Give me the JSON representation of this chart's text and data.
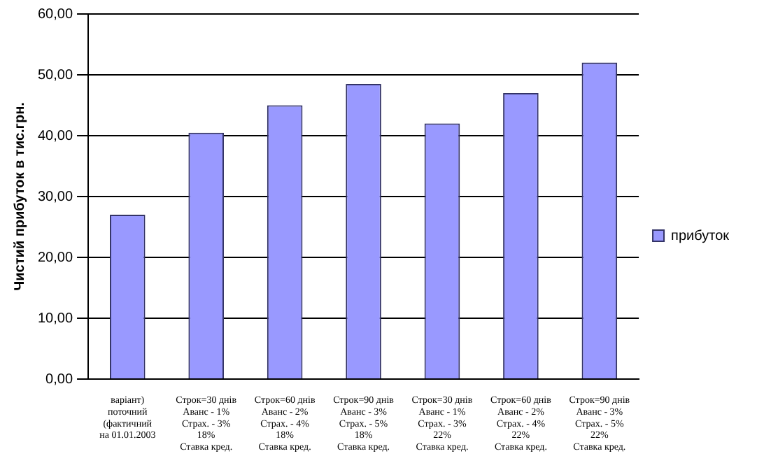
{
  "chart_data": {
    "type": "bar",
    "ylabel": "Чистий прибуток в тис.грн.",
    "categories": [
      "варіант)\nпоточний\n(фактичний\nна 01.01.2003",
      "Строк=30 днів\nАванс - 1%\nСтрах. - 3%\n18%\nСтавка кред.",
      "Строк=60 днів\nАванс - 2%\nСтрах. - 4%\n18%\nСтавка кред.",
      "Строк=90 днів\nАванс - 3%\nСтрах. - 5%\n18%\nСтавка кред.",
      "Строк=30 днів\nАванс - 1%\nСтрах. - 3%\n22%\nСтавка кред.",
      "Строк=60 днів\nАванс - 2%\nСтрах. - 4%\n22%\nСтавка кред.",
      "Строк=90 днів\nАванс - 3%\nСтрах. - 5%\n22%\nСтавка кред."
    ],
    "series": [
      {
        "name": "прибуток",
        "color": "#9999ff",
        "values": [
          27,
          40.5,
          45,
          48.5,
          42,
          47,
          52
        ]
      }
    ],
    "ylim": [
      0,
      60
    ],
    "yticks": [
      {
        "value": 0,
        "label": "0,00"
      },
      {
        "value": 10,
        "label": "10,00"
      },
      {
        "value": 20,
        "label": "20,00"
      },
      {
        "value": 30,
        "label": "30,00"
      },
      {
        "value": 40,
        "label": "40,00"
      },
      {
        "value": 50,
        "label": "50,00"
      },
      {
        "value": 60,
        "label": "60,00"
      }
    ],
    "grid": "y",
    "legend": "right"
  }
}
